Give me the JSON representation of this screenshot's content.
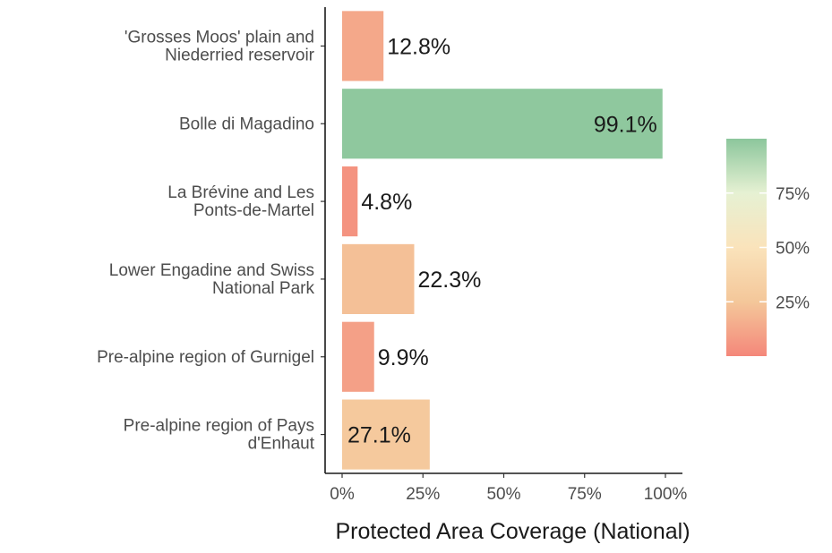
{
  "chart_data": {
    "type": "bar",
    "orientation": "horizontal",
    "categories": [
      [
        "'Grosses Moos' plain and",
        "Niederried reservoir"
      ],
      [
        "Bolle di Magadino"
      ],
      [
        "La Brévine and Les",
        "Ponts-de-Martel"
      ],
      [
        "Lower Engadine and Swiss",
        "National Park"
      ],
      [
        "Pre-alpine region of Gurnigel"
      ],
      [
        "Pre-alpine region of Pays",
        "d'Enhaut"
      ]
    ],
    "values": [
      12.8,
      99.1,
      4.8,
      22.3,
      9.9,
      27.1
    ],
    "data_labels": [
      "12.8%",
      "99.1%",
      "4.8%",
      "22.3%",
      "9.9%",
      "27.1%"
    ],
    "xlim": [
      0,
      100
    ],
    "xticks": [
      0,
      25,
      50,
      75,
      100
    ],
    "xtick_labels": [
      "0%",
      "25%",
      "50%",
      "75%",
      "100%"
    ],
    "xlabel": "Protected Area Coverage (National)",
    "ylabel": "",
    "title": "",
    "grid": false,
    "legend": {
      "type": "colorbar",
      "placement": "right",
      "ticks": [
        25,
        50,
        75
      ],
      "tick_labels": [
        "25%",
        "50%",
        "75%"
      ],
      "colors": [
        "#f4877a",
        "#f4c79a",
        "#fae3bb",
        "#e6f1d3",
        "#8cc69c"
      ]
    }
  }
}
